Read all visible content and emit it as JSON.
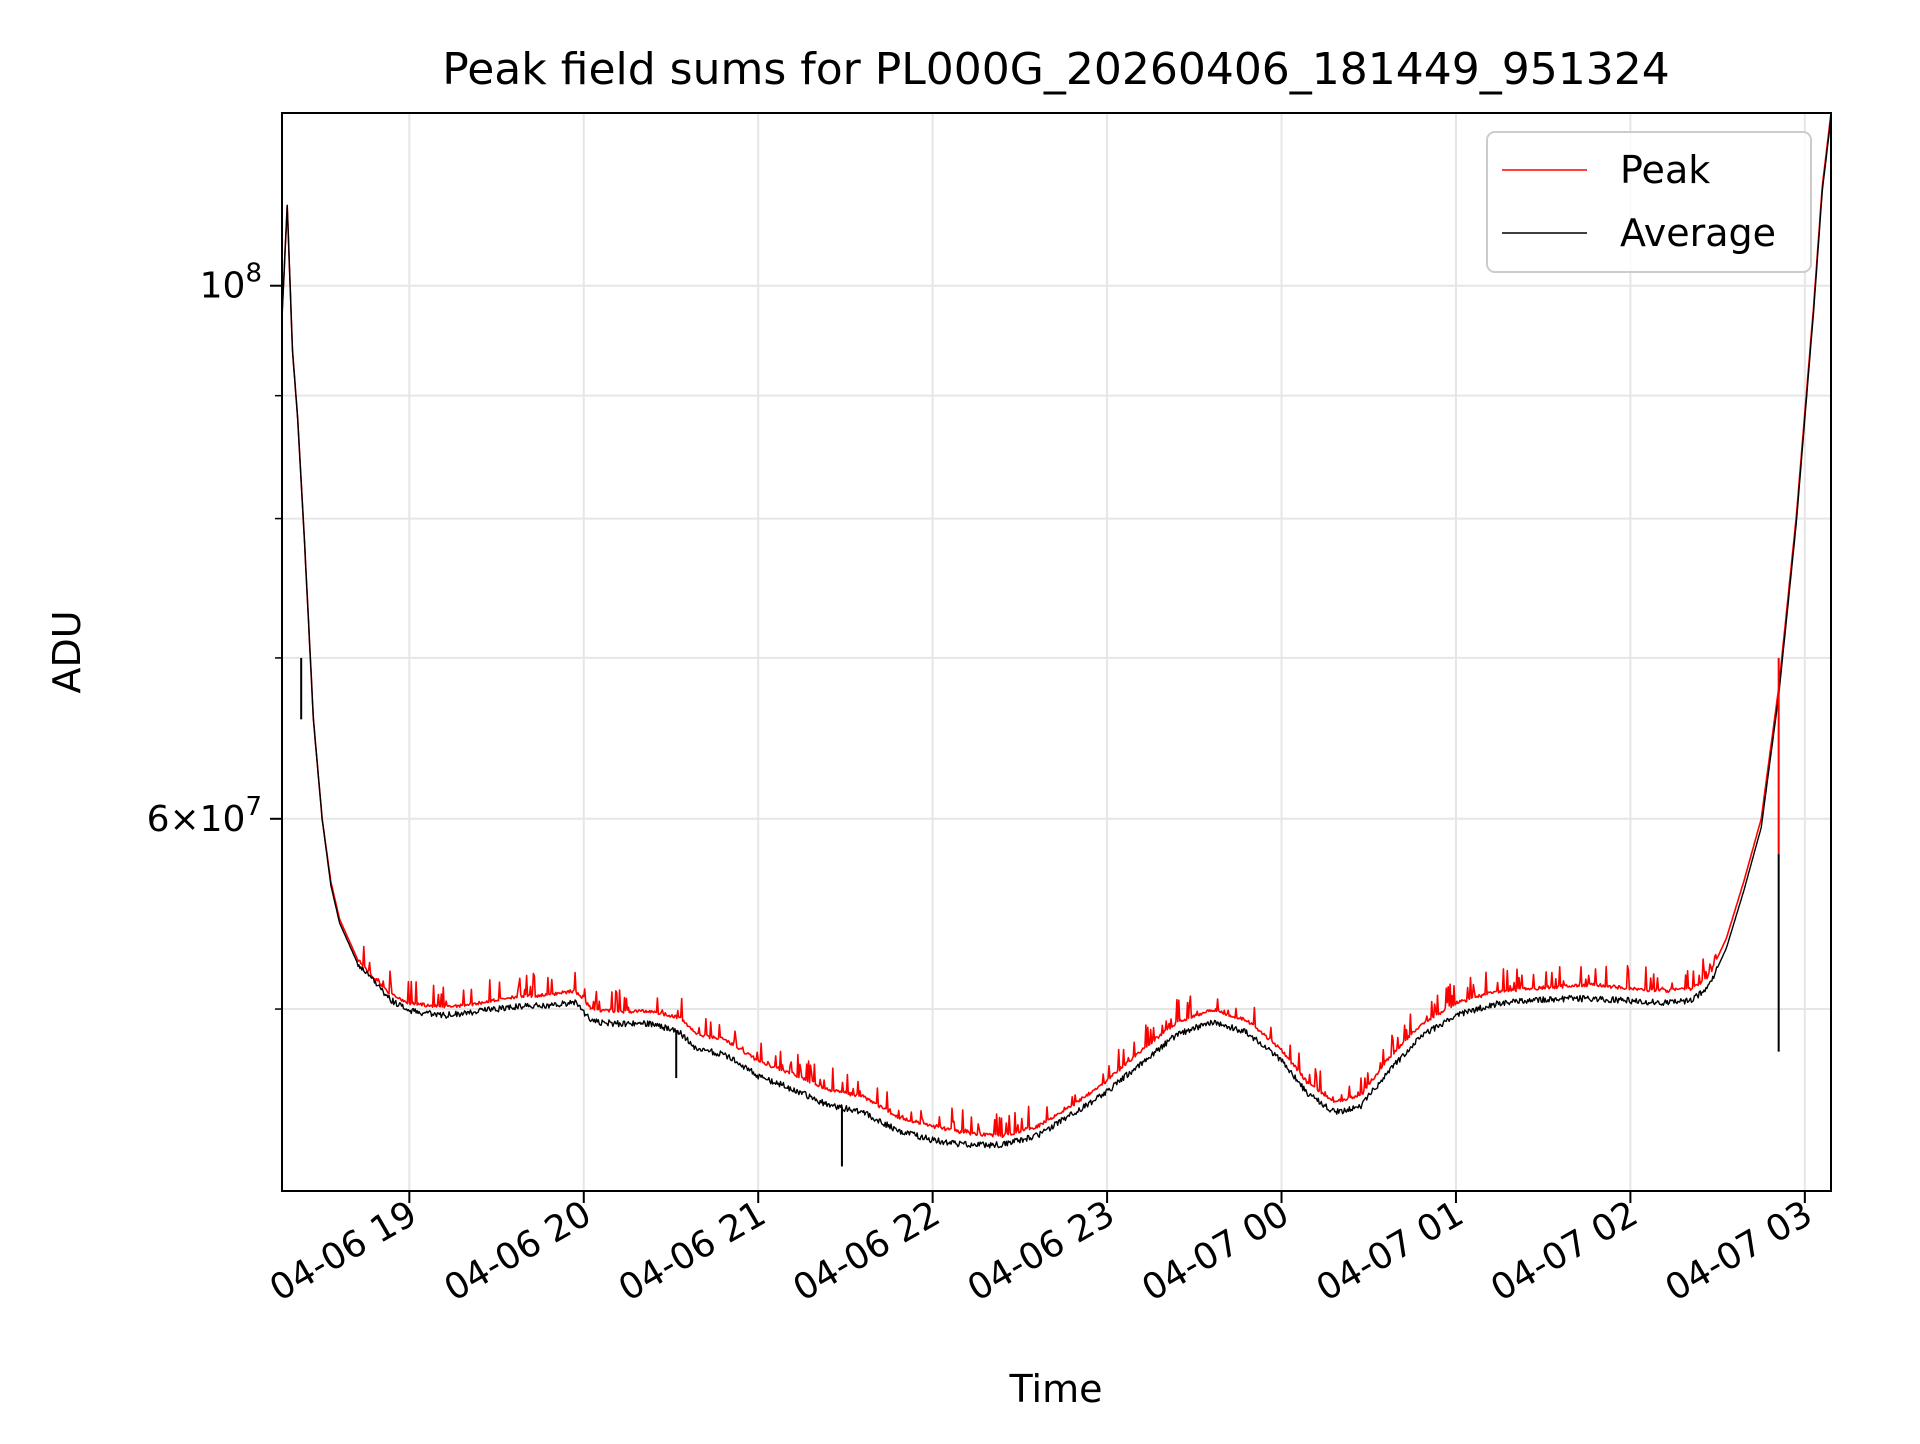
{
  "chart_data": {
    "type": "line",
    "title": "Peak field sums for PL000G_20260406_181449_951324",
    "xlabel": "Time",
    "ylabel": "ADU",
    "y_scale": "log",
    "ylim": [
      42000000,
      118000000
    ],
    "xlim_hours": [
      18.27,
      27.15
    ],
    "grid": true,
    "legend_position": "upper right",
    "x_ticks": [
      {
        "hour": 19,
        "label": "04-06 19"
      },
      {
        "hour": 20,
        "label": "04-06 20"
      },
      {
        "hour": 21,
        "label": "04-06 21"
      },
      {
        "hour": 22,
        "label": "04-06 22"
      },
      {
        "hour": 23,
        "label": "04-06 23"
      },
      {
        "hour": 24,
        "label": "04-07 00"
      },
      {
        "hour": 25,
        "label": "04-07 01"
      },
      {
        "hour": 26,
        "label": "04-07 02"
      },
      {
        "hour": 27,
        "label": "04-07 03"
      }
    ],
    "y_major_ticks": [
      {
        "value": 100000000,
        "mantissa": "",
        "base": "10",
        "exp": "8"
      },
      {
        "value": 60000000,
        "mantissa": "6",
        "base": "10",
        "exp": "7"
      }
    ],
    "y_minor_ticks": [
      50000000,
      70000000,
      80000000,
      90000000
    ],
    "series": [
      {
        "name": "Peak",
        "color": "#ff0000",
        "points": [
          [
            18.27,
            97000000
          ],
          [
            18.3,
            108000000
          ],
          [
            18.33,
            94000000
          ],
          [
            18.36,
            88000000
          ],
          [
            18.4,
            78000000
          ],
          [
            18.45,
            66000000
          ],
          [
            18.5,
            60000000
          ],
          [
            18.55,
            56500000
          ],
          [
            18.6,
            54500000
          ],
          [
            18.7,
            52500000
          ],
          [
            18.8,
            51500000
          ],
          [
            18.9,
            50700000
          ],
          [
            19.0,
            50300000
          ],
          [
            19.2,
            50100000
          ],
          [
            19.4,
            50300000
          ],
          [
            19.6,
            50600000
          ],
          [
            19.8,
            50700000
          ],
          [
            19.95,
            50900000
          ],
          [
            20.05,
            50000000
          ],
          [
            20.2,
            49900000
          ],
          [
            20.4,
            49900000
          ],
          [
            20.55,
            49600000
          ],
          [
            20.65,
            48800000
          ],
          [
            20.8,
            48600000
          ],
          [
            21.0,
            47600000
          ],
          [
            21.2,
            47000000
          ],
          [
            21.4,
            46300000
          ],
          [
            21.6,
            46000000
          ],
          [
            21.8,
            45100000
          ],
          [
            22.0,
            44700000
          ],
          [
            22.2,
            44400000
          ],
          [
            22.4,
            44300000
          ],
          [
            22.6,
            44700000
          ],
          [
            22.8,
            45600000
          ],
          [
            23.0,
            46700000
          ],
          [
            23.2,
            48100000
          ],
          [
            23.4,
            49400000
          ],
          [
            23.6,
            50000000
          ],
          [
            23.8,
            49500000
          ],
          [
            24.0,
            48100000
          ],
          [
            24.15,
            46600000
          ],
          [
            24.3,
            45800000
          ],
          [
            24.45,
            46000000
          ],
          [
            24.6,
            47600000
          ],
          [
            24.8,
            49300000
          ],
          [
            25.0,
            50300000
          ],
          [
            25.2,
            50800000
          ],
          [
            25.4,
            51000000
          ],
          [
            25.6,
            51100000
          ],
          [
            25.8,
            51200000
          ],
          [
            26.0,
            51000000
          ],
          [
            26.2,
            50900000
          ],
          [
            26.35,
            51000000
          ],
          [
            26.45,
            51600000
          ],
          [
            26.55,
            53500000
          ],
          [
            26.65,
            56500000
          ],
          [
            26.75,
            60000000
          ],
          [
            26.85,
            68000000
          ],
          [
            26.95,
            80000000
          ],
          [
            27.05,
            98000000
          ],
          [
            27.1,
            110000000
          ],
          [
            27.15,
            118000000
          ]
        ]
      },
      {
        "name": "Average",
        "color": "#000000",
        "points": [
          [
            18.27,
            97000000
          ],
          [
            18.3,
            108000000
          ],
          [
            18.33,
            94000000
          ],
          [
            18.36,
            88000000
          ],
          [
            18.4,
            78000000
          ],
          [
            18.45,
            66000000
          ],
          [
            18.5,
            60000000
          ],
          [
            18.55,
            56300000
          ],
          [
            18.6,
            54300000
          ],
          [
            18.7,
            52300000
          ],
          [
            18.8,
            51300000
          ],
          [
            18.9,
            50400000
          ],
          [
            19.0,
            49900000
          ],
          [
            19.2,
            49700000
          ],
          [
            19.4,
            49900000
          ],
          [
            19.6,
            50100000
          ],
          [
            19.8,
            50200000
          ],
          [
            19.95,
            50300000
          ],
          [
            20.05,
            49400000
          ],
          [
            20.2,
            49300000
          ],
          [
            20.4,
            49300000
          ],
          [
            20.55,
            48900000
          ],
          [
            20.65,
            48100000
          ],
          [
            20.8,
            47900000
          ],
          [
            21.0,
            46900000
          ],
          [
            21.2,
            46300000
          ],
          [
            21.4,
            45600000
          ],
          [
            21.6,
            45300000
          ],
          [
            21.8,
            44500000
          ],
          [
            22.0,
            44100000
          ],
          [
            22.2,
            43900000
          ],
          [
            22.4,
            43900000
          ],
          [
            22.6,
            44300000
          ],
          [
            22.8,
            45200000
          ],
          [
            23.0,
            46200000
          ],
          [
            23.2,
            47500000
          ],
          [
            23.4,
            48800000
          ],
          [
            23.6,
            49400000
          ],
          [
            23.8,
            48900000
          ],
          [
            24.0,
            47600000
          ],
          [
            24.15,
            46100000
          ],
          [
            24.3,
            45300000
          ],
          [
            24.45,
            45500000
          ],
          [
            24.6,
            47000000
          ],
          [
            24.8,
            48700000
          ],
          [
            25.0,
            49700000
          ],
          [
            25.2,
            50200000
          ],
          [
            25.4,
            50400000
          ],
          [
            25.6,
            50500000
          ],
          [
            25.8,
            50500000
          ],
          [
            26.0,
            50400000
          ],
          [
            26.2,
            50300000
          ],
          [
            26.35,
            50400000
          ],
          [
            26.45,
            51100000
          ],
          [
            26.55,
            53000000
          ],
          [
            26.65,
            56000000
          ],
          [
            26.75,
            59500000
          ],
          [
            26.85,
            67500000
          ],
          [
            26.95,
            79500000
          ],
          [
            27.05,
            97500000
          ],
          [
            27.1,
            109500000
          ],
          [
            27.15,
            117500000
          ]
        ]
      }
    ],
    "spikes": [
      {
        "series": "Peak",
        "hour": 26.85,
        "from": 58000000,
        "to": 70000000
      },
      {
        "series": "Average",
        "hour": 26.85,
        "from": 48000000,
        "to": 58000000
      },
      {
        "series": "Average",
        "hour": 18.38,
        "from": 66000000,
        "to": 70000000
      },
      {
        "series": "Average",
        "hour": 21.48,
        "from": 43000000,
        "to": 45500000
      },
      {
        "series": "Average",
        "hour": 20.53,
        "from": 46800000,
        "to": 49000000
      }
    ]
  }
}
